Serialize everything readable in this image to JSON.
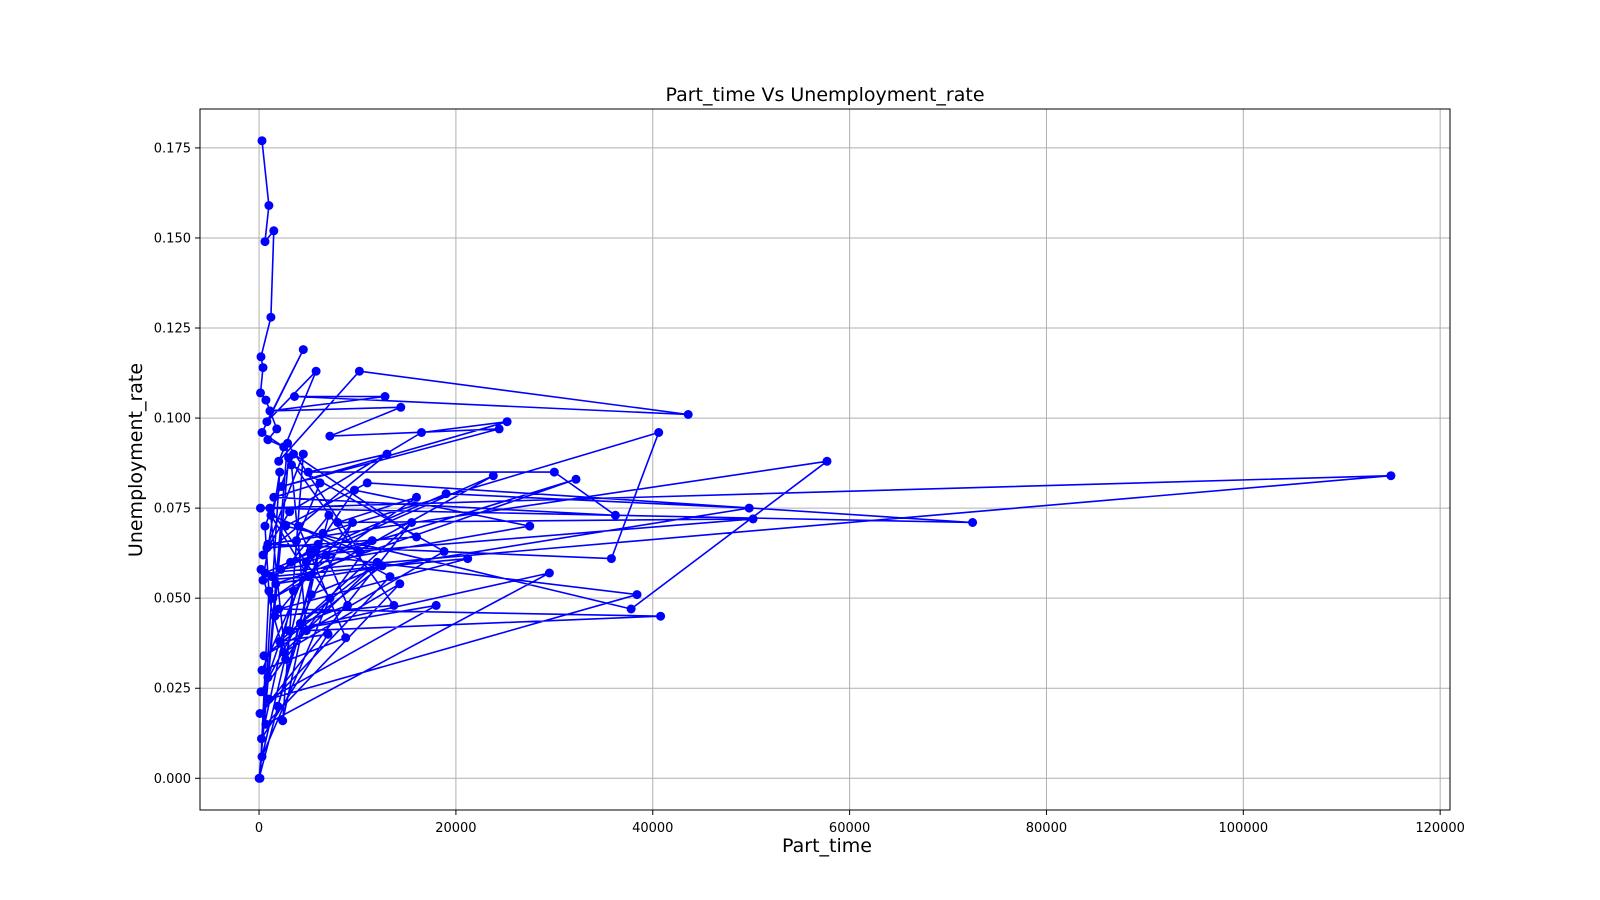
{
  "chart_data": {
    "type": "line",
    "title": "Part_time Vs Unemployment_rate",
    "xlabel": "Part_time",
    "ylabel": "Unemployment_rate",
    "xlim": [
      -6000,
      121000
    ],
    "ylim": [
      -0.0088,
      0.1858
    ],
    "xticks": [
      0,
      20000,
      40000,
      60000,
      80000,
      100000,
      120000
    ],
    "xtick_labels": [
      "0",
      "20000",
      "40000",
      "60000",
      "80000",
      "100000",
      "120000"
    ],
    "yticks": [
      0.0,
      0.025,
      0.05,
      0.075,
      0.1,
      0.125,
      0.15,
      0.175
    ],
    "ytick_labels": [
      "0.000",
      "0.025",
      "0.050",
      "0.075",
      "0.100",
      "0.125",
      "0.150",
      "0.175"
    ],
    "grid": true,
    "color": "#0000ff",
    "marker": "circle",
    "series": [
      {
        "x": [
          300,
          1000,
          600,
          1500,
          1200,
          200,
          400,
          150,
          700,
          1800,
          900,
          2500,
          300,
          4500,
          800,
          5800,
          2000,
          10200,
          43600,
          3600,
          12800,
          1100,
          14400,
          7200,
          24400,
          2300,
          25200,
          16500,
          3100,
          400,
          13000,
          5000,
          30000,
          36200,
          1500,
          6200,
          3800,
          40600,
          35800,
          900,
          57700,
          37800,
          2700,
          11000,
          72500,
          150,
          115000,
          600,
          5500,
          19000,
          49800,
          1700,
          32200,
          4800,
          9700,
          27500,
          2200,
          23800,
          1400,
          16000,
          8000,
          50200,
          5300,
          38400,
          1000,
          18000,
          3000,
          29500,
          700,
          14300,
          2500,
          12000,
          4200,
          9000,
          6800,
          3500,
          250,
          7000,
          2100,
          15500,
          100,
          13300,
          4000,
          8800,
          300,
          6000,
          1300,
          21200,
          2000,
          40800,
          4800,
          3300,
          18800,
          500,
          12500,
          5300,
          1900,
          7100,
          3200,
          11500,
          200,
          9500,
          1600,
          13700,
          3000,
          0,
          6500,
          2400,
          4500,
          800,
          16000,
          3500,
          600,
          1000,
          100,
          2100,
          400,
          5000,
          1200,
          10200,
          2900,
          900,
          5200,
          300,
          7200,
          1100,
          2700,
          200
        ],
        "y": [
          0.177,
          0.159,
          0.149,
          0.152,
          0.128,
          0.117,
          0.114,
          0.107,
          0.105,
          0.097,
          0.094,
          0.092,
          0.096,
          0.119,
          0.099,
          0.113,
          0.088,
          0.113,
          0.101,
          0.106,
          0.106,
          0.102,
          0.103,
          0.095,
          0.097,
          0.081,
          0.099,
          0.096,
          0.074,
          0.062,
          0.09,
          0.085,
          0.085,
          0.073,
          0.078,
          0.082,
          0.066,
          0.096,
          0.061,
          0.065,
          0.088,
          0.047,
          0.07,
          0.082,
          0.071,
          0.075,
          0.084,
          0.057,
          0.063,
          0.079,
          0.075,
          0.054,
          0.083,
          0.06,
          0.08,
          0.07,
          0.058,
          0.084,
          0.05,
          0.078,
          0.071,
          0.072,
          0.062,
          0.051,
          0.022,
          0.048,
          0.041,
          0.057,
          0.015,
          0.054,
          0.035,
          0.06,
          0.043,
          0.048,
          0.062,
          0.052,
          0.011,
          0.04,
          0.038,
          0.071,
          0.018,
          0.056,
          0.07,
          0.039,
          0.03,
          0.065,
          0.056,
          0.061,
          0.047,
          0.045,
          0.041,
          0.087,
          0.063,
          0.034,
          0.059,
          0.051,
          0.02,
          0.073,
          0.06,
          0.066,
          0.024,
          0.071,
          0.045,
          0.048,
          0.089,
          0.0,
          0.068,
          0.016,
          0.09,
          0.064,
          0.067,
          0.09,
          0.07,
          0.052,
          0.0,
          0.085,
          0.055,
          0.056,
          0.073,
          0.063,
          0.093,
          0.028,
          0.063,
          0.006,
          0.05,
          0.075,
          0.033,
          0.058
        ]
      }
    ]
  }
}
